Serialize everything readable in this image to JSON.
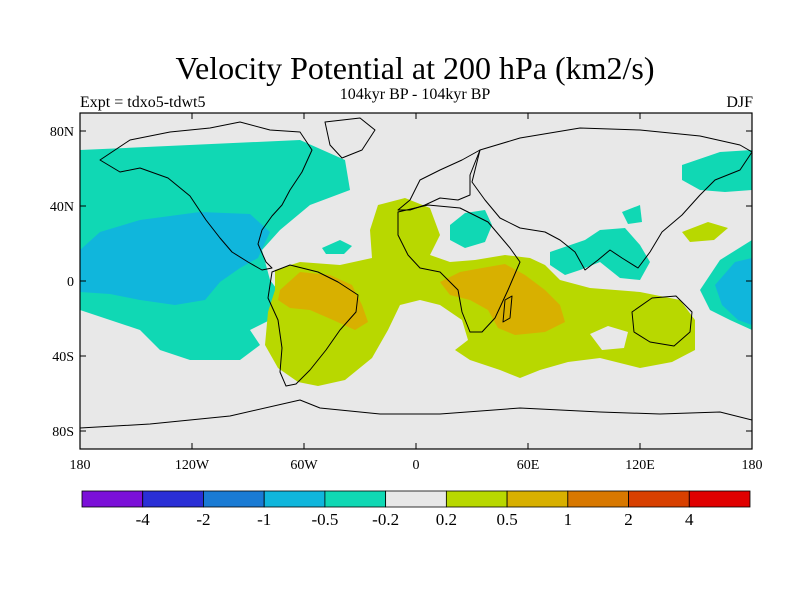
{
  "header": {
    "title": "Velocity Potential at 200 hPa (km2/s)",
    "subtitle": "104kyr BP - 104kyr BP",
    "experiment": "Expt = tdxo5-tdwt5",
    "season": "DJF"
  },
  "axes": {
    "lat_ticks": [
      "80N",
      "40N",
      "0",
      "40S",
      "80S"
    ],
    "lon_ticks": [
      "180",
      "120W",
      "60W",
      "0",
      "60E",
      "120E",
      "180"
    ]
  },
  "colorbar": {
    "colors": [
      "#7b10d8",
      "#2a2fd6",
      "#1a7bd4",
      "#10b6dc",
      "#10d8b4",
      "#e8e8e8",
      "#b8d800",
      "#d8b000",
      "#d87800",
      "#d84000",
      "#e00000"
    ],
    "labels": [
      "-4",
      "-2",
      "-1",
      "-0.5",
      "-0.2",
      "0.2",
      "0.5",
      "1",
      "2",
      "4"
    ]
  },
  "colors": {
    "neutral": "#e8e8e8",
    "light_cyan": "#10d8b4",
    "cyan": "#10b6dc",
    "yellow_green": "#b8d800",
    "orange": "#d8b000"
  }
}
